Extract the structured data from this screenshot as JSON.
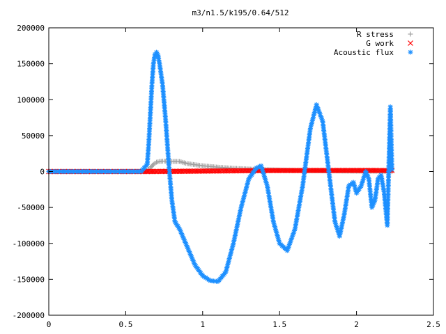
{
  "chart_data": {
    "type": "scatter",
    "title": "m3/n1.5/k195/0.64/512",
    "xlabel": "",
    "ylabel": "",
    "xlim": [
      0,
      2.5
    ],
    "ylim": [
      -200000,
      200000
    ],
    "x_ticks": [
      0,
      0.5,
      1,
      1.5,
      2,
      2.5
    ],
    "x_tick_labels": [
      "0",
      "0.5",
      "1",
      "1.5",
      "2",
      "2.5"
    ],
    "y_ticks": [
      200000,
      150000,
      100000,
      50000,
      0,
      -50000,
      -100000,
      -150000,
      -200000
    ],
    "y_tick_labels": [
      "200000",
      "150000",
      "100000",
      "50000",
      "0",
      "-50000",
      "-100000",
      "-150000",
      "-200000"
    ],
    "grid": false,
    "legend_position": "top-right",
    "series": [
      {
        "name": "R stress",
        "marker": "plus",
        "color": "#a0a0a0",
        "x": [
          0,
          0.2,
          0.4,
          0.6,
          0.64,
          0.66,
          0.68,
          0.7,
          0.72,
          0.75,
          0.8,
          0.85,
          0.9,
          1.0,
          1.1,
          1.2,
          1.3,
          1.35,
          1.4,
          1.5,
          1.6,
          1.7,
          1.8,
          1.9,
          2.0,
          2.1,
          2.2,
          2.23
        ],
        "y": [
          0,
          0,
          0,
          200,
          1000,
          5000,
          10000,
          13000,
          14000,
          14500,
          14000,
          14000,
          11000,
          8000,
          6000,
          4500,
          3500,
          3000,
          2500,
          2000,
          1500,
          1200,
          1000,
          800,
          600,
          500,
          400,
          300
        ]
      },
      {
        "name": "G work",
        "marker": "cross",
        "color": "#ff0000",
        "x": [
          0,
          0.2,
          0.4,
          0.6,
          0.7,
          0.8,
          0.9,
          1.0,
          1.1,
          1.2,
          1.3,
          1.4,
          1.5,
          1.6,
          1.7,
          1.8,
          1.9,
          2.0,
          2.1,
          2.2,
          2.23
        ],
        "y": [
          0,
          0,
          0,
          0,
          100,
          200,
          400,
          600,
          800,
          1000,
          1200,
          1300,
          1400,
          1400,
          1500,
          1500,
          1500,
          1500,
          1500,
          1400,
          1400
        ]
      },
      {
        "name": "Acoustic flux",
        "marker": "star",
        "color": "#1e90ff",
        "x": [
          0,
          0.6,
          0.64,
          0.65,
          0.66,
          0.67,
          0.68,
          0.69,
          0.7,
          0.71,
          0.72,
          0.74,
          0.76,
          0.78,
          0.8,
          0.82,
          0.85,
          0.9,
          0.95,
          1.0,
          1.05,
          1.1,
          1.15,
          1.2,
          1.25,
          1.3,
          1.35,
          1.38,
          1.42,
          1.46,
          1.5,
          1.55,
          1.6,
          1.65,
          1.7,
          1.74,
          1.78,
          1.82,
          1.86,
          1.89,
          1.92,
          1.95,
          1.98,
          2.0,
          2.03,
          2.06,
          2.08,
          2.1,
          2.12,
          2.14,
          2.16,
          2.18,
          2.2,
          2.22,
          2.23
        ],
        "y": [
          0,
          0,
          10000,
          40000,
          80000,
          120000,
          150000,
          163000,
          166000,
          162000,
          150000,
          120000,
          70000,
          10000,
          -40000,
          -70000,
          -80000,
          -105000,
          -130000,
          -145000,
          -152000,
          -153000,
          -140000,
          -100000,
          -50000,
          -10000,
          5000,
          8000,
          -20000,
          -70000,
          -100000,
          -110000,
          -80000,
          -20000,
          60000,
          93000,
          70000,
          0,
          -70000,
          -90000,
          -60000,
          -20000,
          -15000,
          -30000,
          -20000,
          0,
          -10000,
          -50000,
          -40000,
          -10000,
          -5000,
          -30000,
          -75000,
          90000,
          3000
        ]
      }
    ]
  }
}
